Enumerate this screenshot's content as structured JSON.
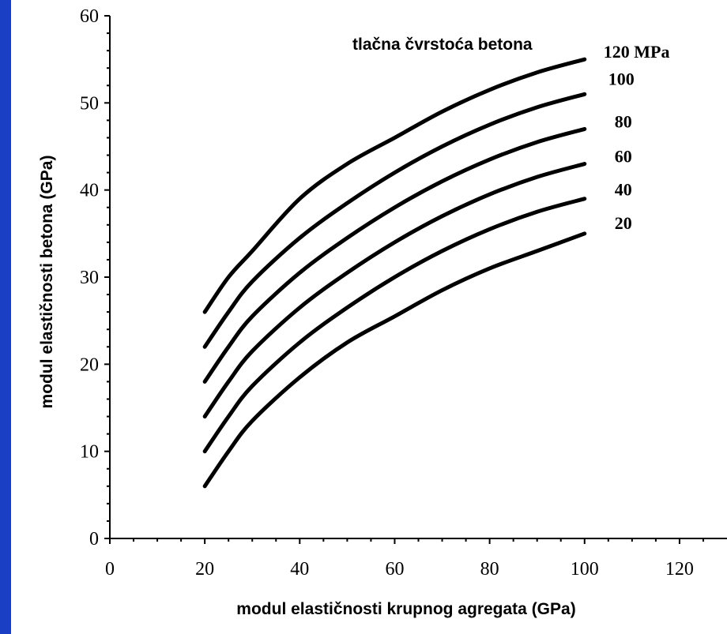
{
  "chart_data": {
    "type": "line",
    "title": "",
    "xlabel": "modul elastičnosti krupnog agregata (GPa)",
    "ylabel": "modul elastičnosti betona (GPa)",
    "xlim": [
      0,
      130
    ],
    "ylim": [
      0,
      60
    ],
    "xticks": [
      "0",
      "20",
      "40",
      "60",
      "80",
      "100",
      "120"
    ],
    "yticks": [
      "0",
      "10",
      "20",
      "30",
      "40",
      "50",
      "60"
    ],
    "legend_title": "tlačna čvrstoća betona",
    "grid": false,
    "series": [
      {
        "name": "120 MPa",
        "x": [
          20,
          25,
          30,
          40,
          50,
          60,
          70,
          80,
          90,
          100
        ],
        "y": [
          26,
          30,
          33,
          39,
          43,
          46,
          49,
          51.5,
          53.5,
          55
        ]
      },
      {
        "name": "100",
        "x": [
          20,
          25,
          30,
          40,
          50,
          60,
          70,
          80,
          90,
          100
        ],
        "y": [
          22,
          26,
          29.5,
          34.5,
          38.5,
          42,
          45,
          47.5,
          49.5,
          51
        ]
      },
      {
        "name": "80",
        "x": [
          20,
          25,
          30,
          40,
          50,
          60,
          70,
          80,
          90,
          100
        ],
        "y": [
          18,
          22,
          25.5,
          30.5,
          34.5,
          38,
          41,
          43.5,
          45.5,
          47
        ]
      },
      {
        "name": "60",
        "x": [
          20,
          25,
          30,
          40,
          50,
          60,
          70,
          80,
          90,
          100
        ],
        "y": [
          14,
          18,
          21.5,
          26.5,
          30.5,
          34,
          37,
          39.5,
          41.5,
          43
        ]
      },
      {
        "name": "40",
        "x": [
          20,
          25,
          30,
          40,
          50,
          60,
          70,
          80,
          90,
          100
        ],
        "y": [
          10,
          14,
          17.5,
          22.5,
          26.5,
          30,
          33,
          35.5,
          37.5,
          39
        ]
      },
      {
        "name": "20",
        "x": [
          20,
          25,
          30,
          40,
          50,
          60,
          70,
          80,
          90,
          100
        ],
        "y": [
          6,
          10,
          13.5,
          18.5,
          22.5,
          25.5,
          28.5,
          31,
          33,
          35
        ]
      }
    ]
  }
}
